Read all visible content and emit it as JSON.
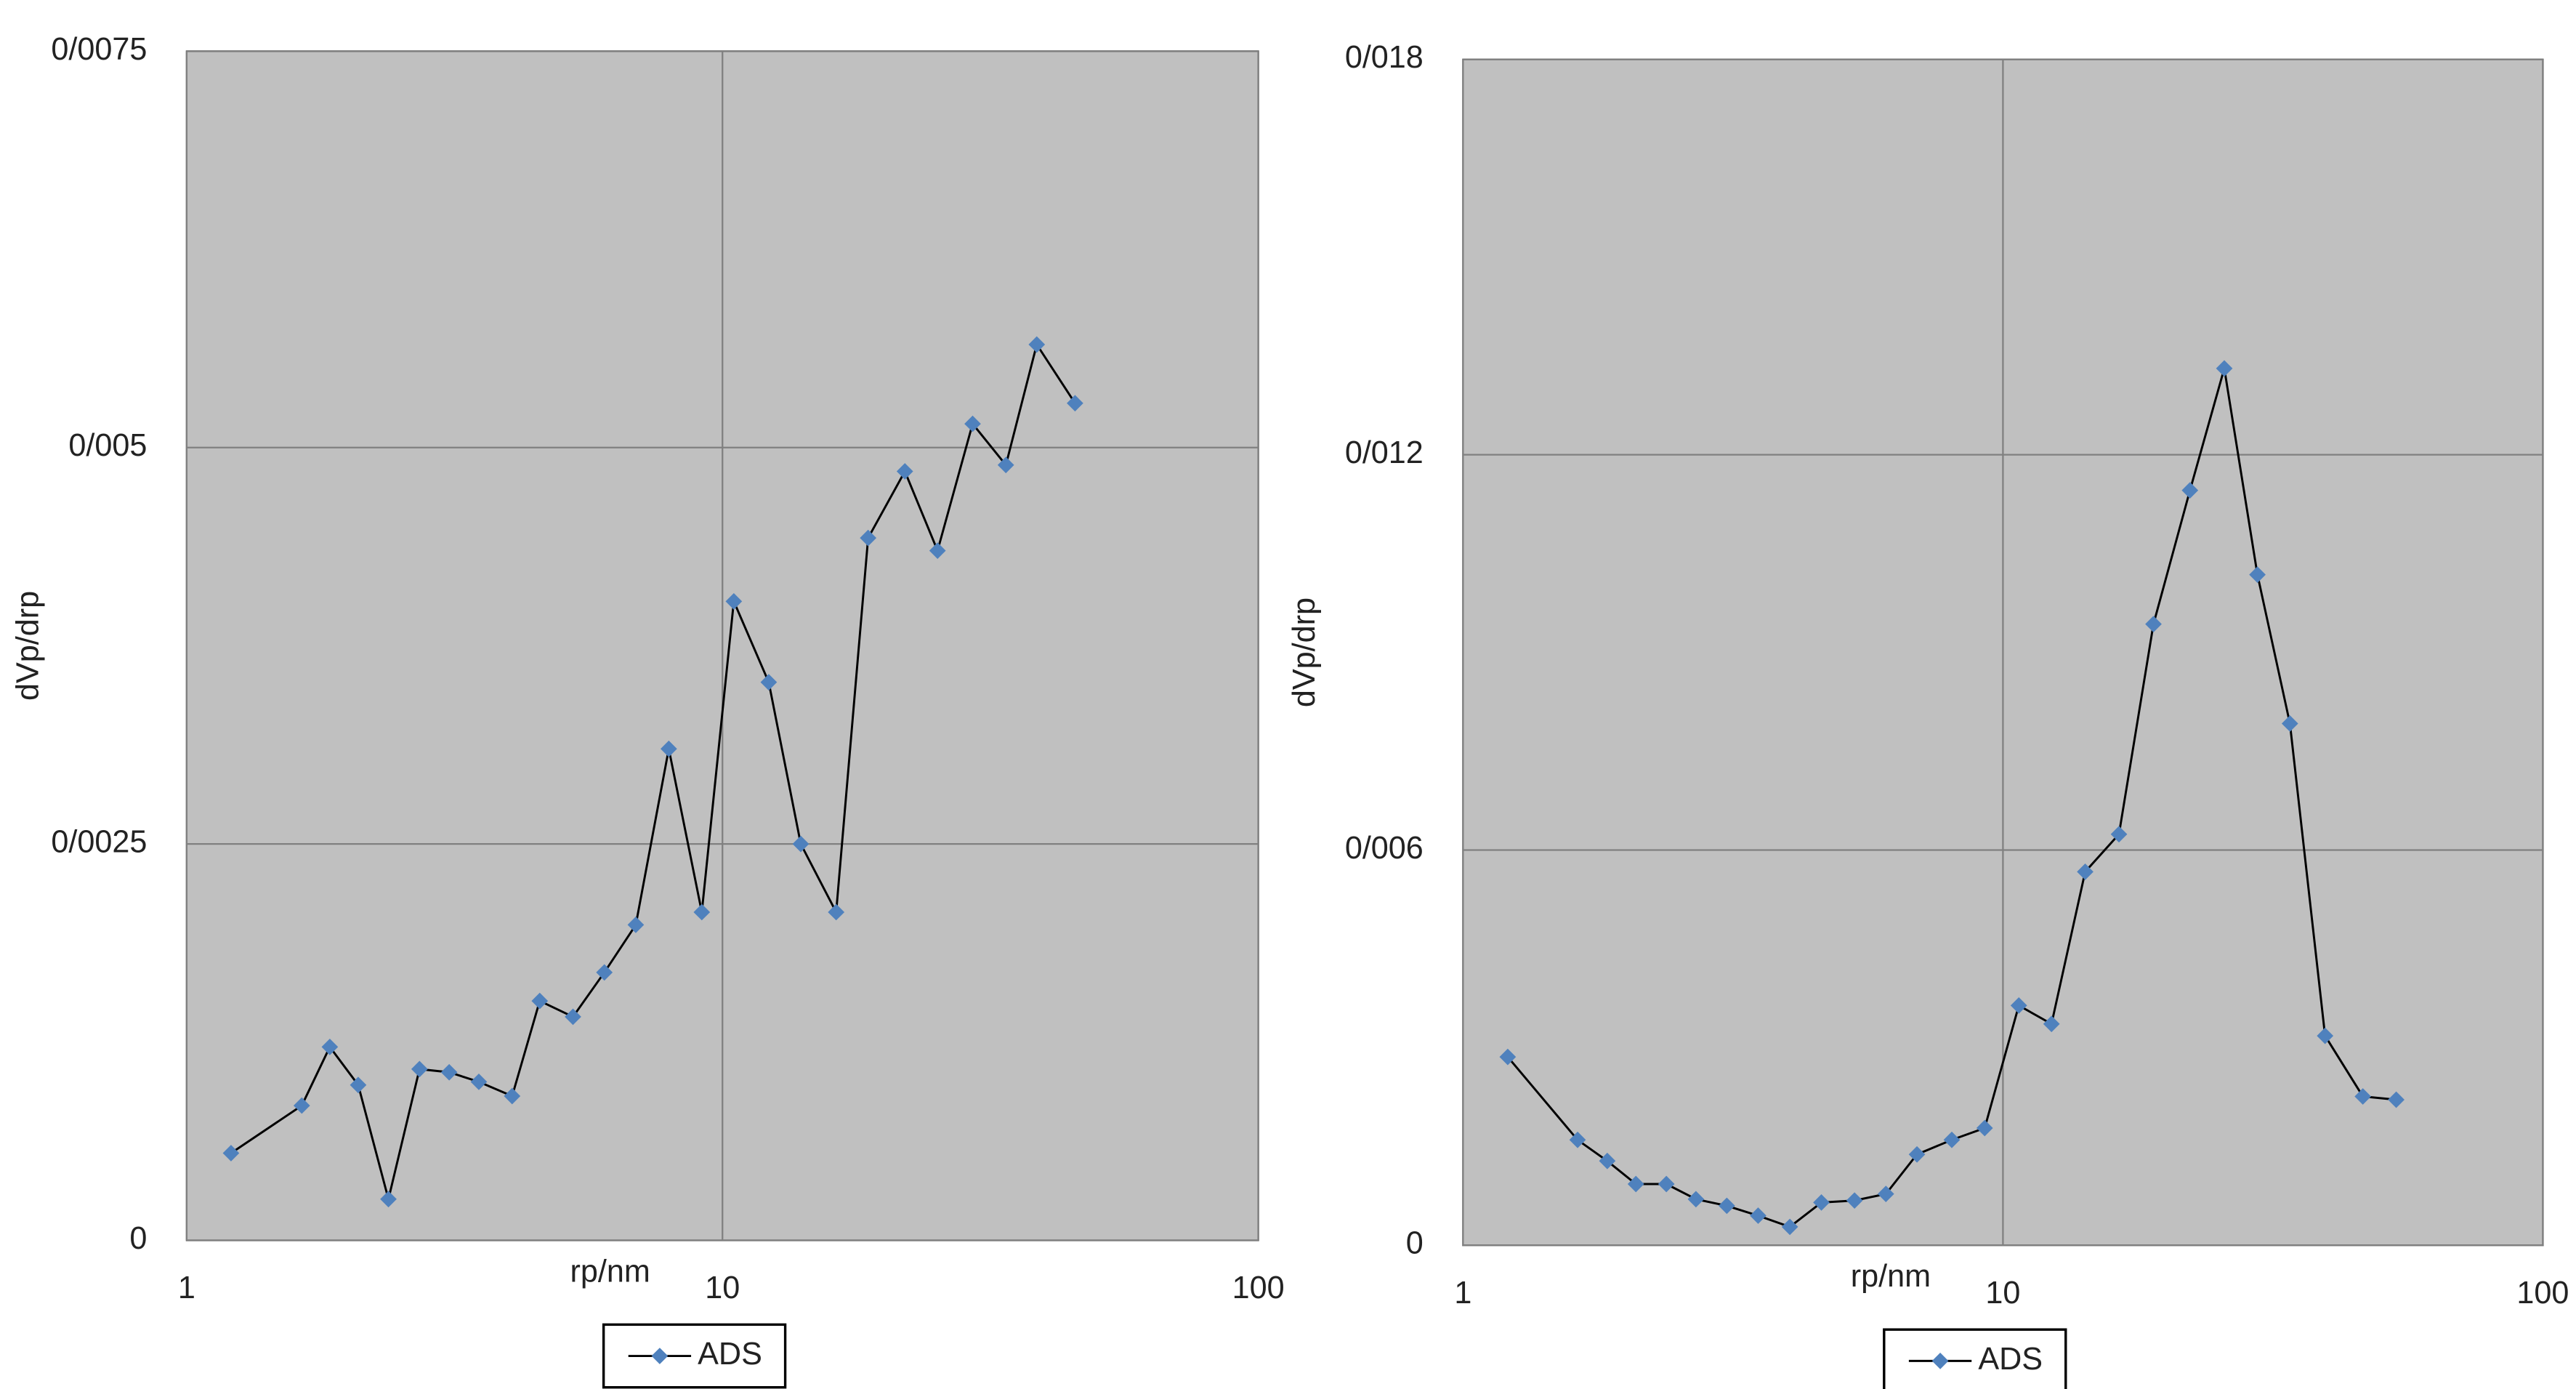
{
  "chart_data": [
    {
      "type": "line",
      "xlabel": "rp/nm",
      "ylabel": "dVp/drp",
      "xscale": "log",
      "grid": true,
      "background": "#c0c0c0",
      "xlim": [
        1,
        100
      ],
      "xticks": [
        1,
        10,
        100
      ],
      "ylim": [
        0,
        0.0075
      ],
      "yticks": [
        0,
        {
          "value": 0.0025,
          "label": "0/0025"
        },
        {
          "value": 0.005,
          "label": "0/005"
        },
        {
          "value": 0.0075,
          "label": "0/0075"
        }
      ],
      "legend": "bottom",
      "series": [
        {
          "name": "ADS",
          "color": "#4f81bd",
          "x": [
            1.21,
            1.64,
            1.85,
            2.09,
            2.38,
            2.72,
            3.09,
            3.51,
            4.05,
            4.56,
            5.26,
            6.02,
            6.89,
            7.94,
            9.15,
            10.5,
            12.2,
            14.0,
            16.3,
            18.7,
            21.9,
            25.2,
            29.3,
            33.8,
            38.6,
            45.5
          ],
          "values": [
            0.00055,
            0.00085,
            0.00122,
            0.00098,
            0.00026,
            0.00108,
            0.00106,
            0.001,
            0.00091,
            0.00151,
            0.00141,
            0.00169,
            0.00199,
            0.0031,
            0.00207,
            0.00403,
            0.00352,
            0.0025,
            0.00207,
            0.00443,
            0.00485,
            0.00435,
            0.00515,
            0.00489,
            0.00565,
            0.00528
          ]
        }
      ]
    },
    {
      "type": "line",
      "xlabel": "rp/nm",
      "ylabel": "dVp/drp",
      "xscale": "log",
      "grid": true,
      "background": "#c0c0c0",
      "xlim": [
        1,
        100
      ],
      "xticks": [
        1,
        10,
        100
      ],
      "ylim": [
        0,
        0.018
      ],
      "yticks": [
        0,
        {
          "value": 0.006,
          "label": "0/006"
        },
        {
          "value": 0.012,
          "label": "0/012"
        },
        {
          "value": 0.018,
          "label": "0/018"
        }
      ],
      "legend": "bottom",
      "series": [
        {
          "name": "ADS",
          "color": "#4f81bd",
          "x": [
            1.21,
            1.63,
            1.85,
            2.09,
            2.38,
            2.7,
            3.08,
            3.52,
            4.03,
            4.61,
            5.31,
            6.07,
            6.93,
            8.04,
            9.25,
            10.7,
            12.3,
            14.2,
            16.4,
            19.0,
            22.2,
            25.7,
            29.6,
            34.0,
            39.5,
            46.4,
            53.5
          ],
          "values": [
            0.00286,
            0.0016,
            0.00128,
            0.00093,
            0.00093,
            0.0007,
            0.0006,
            0.00045,
            0.00028,
            0.00065,
            0.00068,
            0.00078,
            0.00138,
            0.0016,
            0.00178,
            0.00364,
            0.00336,
            0.00567,
            0.00624,
            0.00943,
            0.01146,
            0.01331,
            0.01018,
            0.00792,
            0.00318,
            0.00226,
            0.00221
          ]
        }
      ]
    }
  ]
}
